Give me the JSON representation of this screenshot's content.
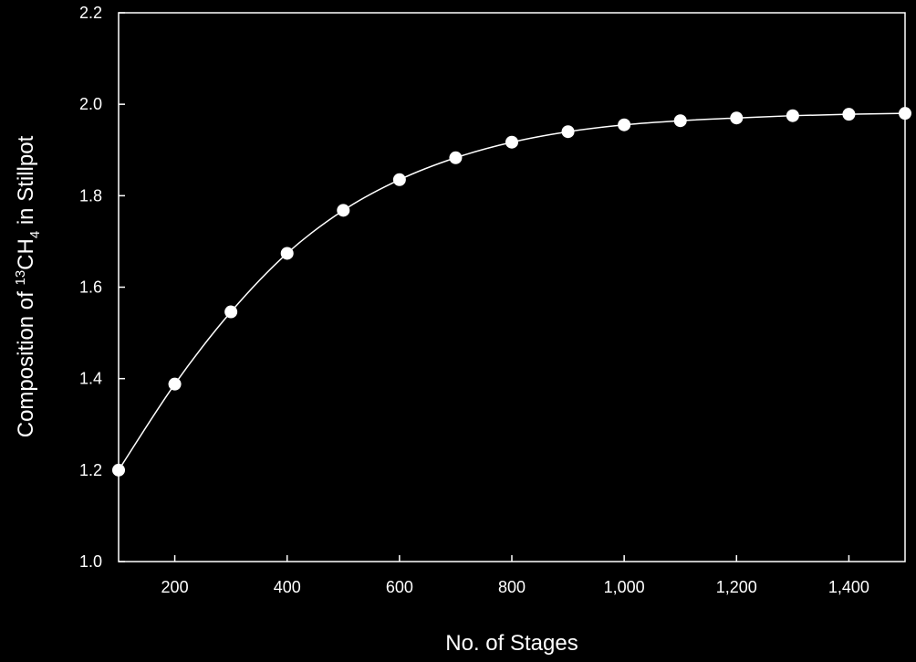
{
  "chart_data": {
    "type": "line",
    "xlabel": "No. of Stages",
    "ylabel": {
      "prefix": "Composition of ",
      "superscript": "13",
      "mid": "CH",
      "subscript": "4",
      "suffix": " in Stillpot"
    },
    "xlim": [
      100,
      1500
    ],
    "ylim": [
      1.0,
      2.2
    ],
    "x_ticks": [
      {
        "value": 200,
        "label": "200"
      },
      {
        "value": 400,
        "label": "400"
      },
      {
        "value": 600,
        "label": "600"
      },
      {
        "value": 800,
        "label": "800"
      },
      {
        "value": 1000,
        "label": "1,000"
      },
      {
        "value": 1200,
        "label": "1,200"
      },
      {
        "value": 1400,
        "label": "1,400"
      }
    ],
    "y_ticks": [
      {
        "value": 1.0,
        "label": "1.0"
      },
      {
        "value": 1.2,
        "label": "1.2"
      },
      {
        "value": 1.4,
        "label": "1.4"
      },
      {
        "value": 1.6,
        "label": "1.6"
      },
      {
        "value": 1.8,
        "label": "1.8"
      },
      {
        "value": 2.0,
        "label": "2.0"
      },
      {
        "value": 2.2,
        "label": "2.2"
      }
    ],
    "series": [
      {
        "x": [
          100,
          200,
          300,
          400,
          500,
          600,
          700,
          800,
          900,
          1000,
          1100,
          1200,
          1300,
          1400,
          1500
        ],
        "y": [
          1.2,
          1.388,
          1.546,
          1.674,
          1.768,
          1.835,
          1.883,
          1.917,
          1.94,
          1.955,
          1.964,
          1.97,
          1.975,
          1.978,
          1.98
        ],
        "marker": "circle",
        "color": "#ffffff"
      }
    ],
    "grid": false,
    "legend": "none",
    "background": "#000000",
    "foreground": "#ffffff"
  }
}
